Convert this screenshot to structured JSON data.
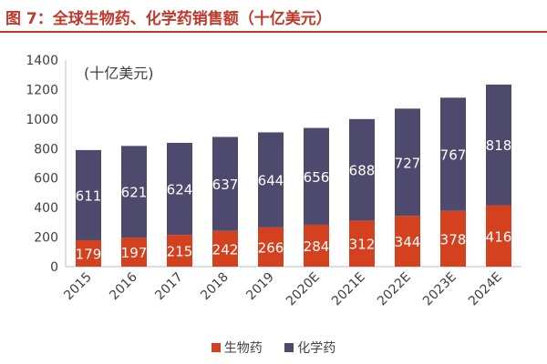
{
  "header": {
    "title": "图 7：全球生物药、化学药销售额（十亿美元）"
  },
  "chart_data": {
    "type": "bar",
    "stacked": true,
    "title": "图 7：全球生物药、化学药销售额（十亿美元）",
    "unit_label": "(十亿美元)",
    "categories": [
      "2015",
      "2016",
      "2017",
      "2018",
      "2019",
      "2020E",
      "2021E",
      "2022E",
      "2023E",
      "2024E"
    ],
    "series": [
      {
        "name": "生物药",
        "color": "#d3411e",
        "values": [
          179,
          197,
          215,
          242,
          266,
          284,
          312,
          344,
          378,
          416
        ]
      },
      {
        "name": "化学药",
        "color": "#4e4a6e",
        "values": [
          611,
          621,
          624,
          637,
          644,
          656,
          688,
          727,
          767,
          818
        ]
      }
    ],
    "ylim": [
      0,
      1400
    ],
    "yticks": [
      "0",
      "200",
      "400",
      "600",
      "800",
      "1000",
      "1200",
      "1400"
    ],
    "label_color": "#ffffff",
    "legend_position": "bottom"
  }
}
